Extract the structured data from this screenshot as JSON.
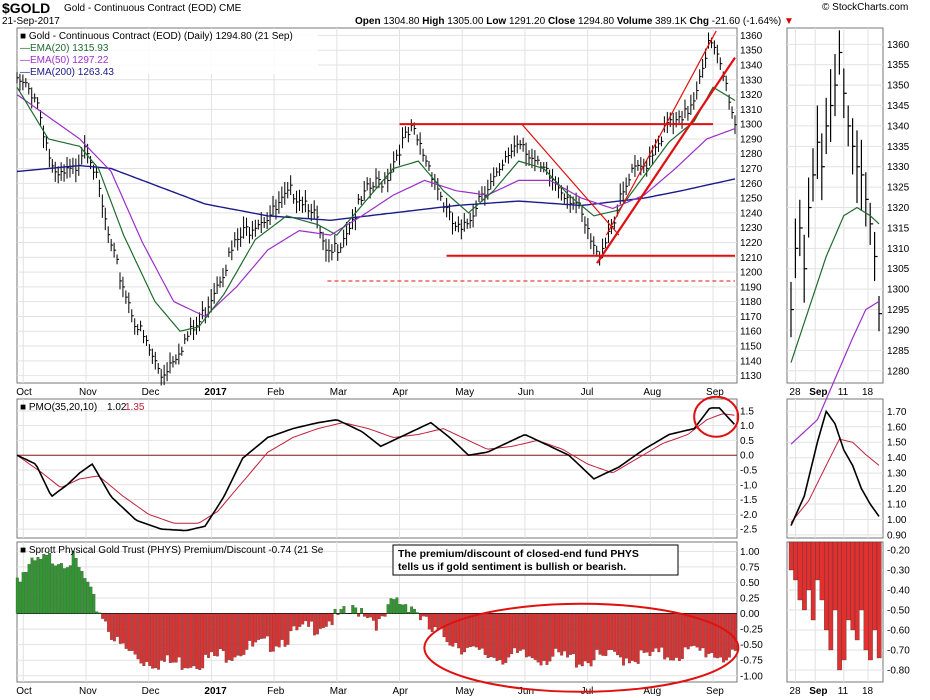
{
  "header": {
    "symbol": "$GOLD",
    "name": "Gold - Continuous Contract (EOD) CME",
    "date": "21-Sep-2017",
    "ohlc": [
      {
        "k": "Open",
        "v": "1304.80"
      },
      {
        "k": "High",
        "v": "1305.00"
      },
      {
        "k": "Low",
        "v": "1291.20"
      },
      {
        "k": "Close",
        "v": "1294.80"
      },
      {
        "k": "Volume",
        "v": "389.1K"
      },
      {
        "k": "Chg",
        "v": "-21.60 (-1.64%)"
      }
    ],
    "credit": "© StockCharts.com"
  },
  "colors": {
    "ema20": "#1f6b2e",
    "ema50": "#9b30c8",
    "ema200": "#1a1a8c",
    "annot": "#e01010",
    "pmo_signal": "#c0203a",
    "hist_pos": "#2e9a2e",
    "hist_neg": "#e03030",
    "grid": "#e2e2e2"
  },
  "chart_data": [
    {
      "panel": "price",
      "type": "line",
      "title": "Gold - Continuous Contract (EOD) (Daily) 1294.80 (21 Sep)",
      "legend": [
        {
          "name": "EMA(20)",
          "value": "1315.93"
        },
        {
          "name": "EMA(50)",
          "value": "1297.22"
        },
        {
          "name": "EMA(200)",
          "value": "1263.43"
        }
      ],
      "y_ticks": [
        "1360",
        "1350",
        "1340",
        "1330",
        "1320",
        "1310",
        "1300",
        "1290",
        "1280",
        "1270",
        "1260",
        "1250",
        "1240",
        "1230",
        "1220",
        "1210",
        "1200",
        "1190",
        "1180",
        "1170",
        "1160",
        "1150",
        "1140",
        "1130"
      ],
      "ylim": [
        1125,
        1365
      ],
      "x_labels": [
        "Oct",
        "Nov",
        "Dec",
        "2017",
        "Feb",
        "Mar",
        "Apr",
        "May",
        "Jun",
        "Jul",
        "Aug",
        "Sep"
      ],
      "x_label_months": [
        0,
        1,
        2,
        3,
        4,
        5,
        6,
        7,
        8,
        9,
        10,
        11
      ],
      "price_key_points": [
        [
          0,
          1328
        ],
        [
          0.3,
          1320
        ],
        [
          0.6,
          1262
        ],
        [
          0.9,
          1268
        ],
        [
          1.1,
          1290
        ],
        [
          1.2,
          1275
        ],
        [
          1.5,
          1215
        ],
        [
          1.9,
          1165
        ],
        [
          2.3,
          1130
        ],
        [
          2.6,
          1150
        ],
        [
          2.9,
          1165
        ],
        [
          3.2,
          1195
        ],
        [
          3.5,
          1220
        ],
        [
          3.8,
          1235
        ],
        [
          4.1,
          1240
        ],
        [
          4.4,
          1255
        ],
        [
          4.7,
          1245
        ],
        [
          4.95,
          1207
        ],
        [
          5.2,
          1225
        ],
        [
          5.6,
          1255
        ],
        [
          5.9,
          1265
        ],
        [
          6.1,
          1285
        ],
        [
          6.3,
          1295
        ],
        [
          6.6,
          1270
        ],
        [
          6.9,
          1235
        ],
        [
          7.1,
          1225
        ],
        [
          7.4,
          1255
        ],
        [
          7.7,
          1265
        ],
        [
          7.9,
          1285
        ],
        [
          8.05,
          1290
        ],
        [
          8.3,
          1270
        ],
        [
          8.6,
          1260
        ],
        [
          8.9,
          1248
        ],
        [
          9.1,
          1225
        ],
        [
          9.25,
          1210
        ],
        [
          9.4,
          1225
        ],
        [
          9.6,
          1245
        ],
        [
          9.8,
          1265
        ],
        [
          10.0,
          1272
        ],
        [
          10.2,
          1288
        ],
        [
          10.4,
          1300
        ],
        [
          10.6,
          1300
        ],
        [
          10.8,
          1320
        ],
        [
          10.95,
          1345
        ],
        [
          11.05,
          1355
        ],
        [
          11.2,
          1340
        ],
        [
          11.35,
          1320
        ],
        [
          11.45,
          1300
        ]
      ],
      "ema20_key_points": [
        [
          0,
          1325
        ],
        [
          0.5,
          1290
        ],
        [
          1,
          1285
        ],
        [
          1.3,
          1270
        ],
        [
          1.7,
          1225
        ],
        [
          2.2,
          1180
        ],
        [
          2.6,
          1160
        ],
        [
          2.9,
          1163
        ],
        [
          3.3,
          1185
        ],
        [
          3.8,
          1222
        ],
        [
          4.3,
          1238
        ],
        [
          4.8,
          1232
        ],
        [
          5.1,
          1225
        ],
        [
          5.6,
          1250
        ],
        [
          6.0,
          1270
        ],
        [
          6.4,
          1275
        ],
        [
          6.8,
          1255
        ],
        [
          7.2,
          1240
        ],
        [
          7.6,
          1255
        ],
        [
          8.0,
          1275
        ],
        [
          8.4,
          1270
        ],
        [
          8.8,
          1252
        ],
        [
          9.2,
          1238
        ],
        [
          9.6,
          1242
        ],
        [
          10.0,
          1265
        ],
        [
          10.4,
          1288
        ],
        [
          10.8,
          1302
        ],
        [
          11.1,
          1325
        ],
        [
          11.45,
          1316
        ]
      ],
      "ema50_key_points": [
        [
          0,
          1320
        ],
        [
          0.5,
          1305
        ],
        [
          1,
          1290
        ],
        [
          1.5,
          1268
        ],
        [
          2,
          1220
        ],
        [
          2.5,
          1180
        ],
        [
          3,
          1170
        ],
        [
          3.5,
          1190
        ],
        [
          4,
          1215
        ],
        [
          4.5,
          1228
        ],
        [
          5,
          1225
        ],
        [
          5.5,
          1238
        ],
        [
          6,
          1252
        ],
        [
          6.5,
          1262
        ],
        [
          7,
          1255
        ],
        [
          7.5,
          1252
        ],
        [
          8,
          1262
        ],
        [
          8.5,
          1262
        ],
        [
          9,
          1250
        ],
        [
          9.5,
          1243
        ],
        [
          10,
          1252
        ],
        [
          10.5,
          1270
        ],
        [
          11,
          1290
        ],
        [
          11.45,
          1297
        ]
      ],
      "ema200_key_points": [
        [
          0,
          1268
        ],
        [
          1,
          1272
        ],
        [
          1.5,
          1270
        ],
        [
          2,
          1262
        ],
        [
          3,
          1246
        ],
        [
          4,
          1238
        ],
        [
          5,
          1235
        ],
        [
          6,
          1240
        ],
        [
          7,
          1245
        ],
        [
          8,
          1248
        ],
        [
          9,
          1245
        ],
        [
          10,
          1250
        ],
        [
          10.6,
          1255
        ],
        [
          11.45,
          1263
        ]
      ]
    },
    {
      "panel": "pmo",
      "type": "line",
      "title": "PMO(35,20,10)",
      "values_text": [
        "1.02",
        "1.35"
      ],
      "y_ticks": [
        "1.5",
        "1.0",
        "0.5",
        "0.0",
        "-0.5",
        "-1.0",
        "-1.5",
        "-2.0",
        "-2.5"
      ],
      "ylim": [
        -2.8,
        1.9
      ],
      "pmo_key_points": [
        [
          0,
          0
        ],
        [
          0.3,
          -0.3
        ],
        [
          0.55,
          -1.4
        ],
        [
          0.8,
          -1.0
        ],
        [
          1.0,
          -0.6
        ],
        [
          1.2,
          -0.3
        ],
        [
          1.5,
          -1.4
        ],
        [
          1.9,
          -2.2
        ],
        [
          2.3,
          -2.5
        ],
        [
          2.7,
          -2.55
        ],
        [
          3.0,
          -2.4
        ],
        [
          3.3,
          -1.4
        ],
        [
          3.6,
          -0.1
        ],
        [
          4.0,
          0.6
        ],
        [
          4.4,
          0.9
        ],
        [
          4.8,
          1.1
        ],
        [
          5.1,
          1.2
        ],
        [
          5.5,
          0.8
        ],
        [
          5.8,
          0.3
        ],
        [
          6.2,
          0.7
        ],
        [
          6.6,
          1.1
        ],
        [
          6.9,
          0.6
        ],
        [
          7.2,
          0.0
        ],
        [
          7.5,
          0.1
        ],
        [
          7.8,
          0.4
        ],
        [
          8.1,
          0.7
        ],
        [
          8.4,
          0.4
        ],
        [
          8.8,
          0.0
        ],
        [
          9.2,
          -0.8
        ],
        [
          9.6,
          -0.4
        ],
        [
          10.0,
          0.2
        ],
        [
          10.4,
          0.7
        ],
        [
          10.8,
          0.9
        ],
        [
          11.05,
          1.6
        ],
        [
          11.2,
          1.6
        ],
        [
          11.45,
          1.02
        ]
      ],
      "signal_key_points": [
        [
          0,
          0.0
        ],
        [
          0.4,
          -0.6
        ],
        [
          0.7,
          -1.1
        ],
        [
          1.0,
          -0.8
        ],
        [
          1.3,
          -0.7
        ],
        [
          1.7,
          -1.4
        ],
        [
          2.1,
          -2.0
        ],
        [
          2.5,
          -2.3
        ],
        [
          2.9,
          -2.3
        ],
        [
          3.2,
          -1.9
        ],
        [
          3.6,
          -0.9
        ],
        [
          4.0,
          0.1
        ],
        [
          4.4,
          0.6
        ],
        [
          4.8,
          0.9
        ],
        [
          5.2,
          1.1
        ],
        [
          5.6,
          0.9
        ],
        [
          6.0,
          0.6
        ],
        [
          6.4,
          0.7
        ],
        [
          6.8,
          0.9
        ],
        [
          7.1,
          0.6
        ],
        [
          7.5,
          0.2
        ],
        [
          7.9,
          0.3
        ],
        [
          8.3,
          0.5
        ],
        [
          8.7,
          0.2
        ],
        [
          9.1,
          -0.3
        ],
        [
          9.5,
          -0.6
        ],
        [
          9.9,
          -0.1
        ],
        [
          10.3,
          0.4
        ],
        [
          10.7,
          0.7
        ],
        [
          11.0,
          1.2
        ],
        [
          11.25,
          1.4
        ],
        [
          11.45,
          1.35
        ]
      ]
    },
    {
      "panel": "premium",
      "type": "bar",
      "title": "Sprott Physical Gold Trust (PHYS) Premium/Discount -0.74 (21 Se",
      "annotation": "The premium/discount of closed-end fund PHYS tells us if gold sentiment is bullish or bearish.",
      "y_ticks": [
        "1.00",
        "0.75",
        "0.50",
        "0.25",
        "0.00",
        "-0.25",
        "-0.50",
        "-0.75",
        "-1.00"
      ],
      "ylim": [
        -1.1,
        1.15
      ],
      "hist_key_points": [
        [
          0,
          0.6
        ],
        [
          0.3,
          0.8
        ],
        [
          0.6,
          0.9
        ],
        [
          0.9,
          0.85
        ],
        [
          1.1,
          0.5
        ],
        [
          1.2,
          0.2
        ],
        [
          1.35,
          0.0
        ],
        [
          1.6,
          -0.5
        ],
        [
          2.0,
          -0.75
        ],
        [
          2.5,
          -0.8
        ],
        [
          3.0,
          -0.75
        ],
        [
          3.5,
          -0.6
        ],
        [
          4.0,
          -0.5
        ],
        [
          4.5,
          -0.3
        ],
        [
          5.0,
          -0.1
        ],
        [
          5.3,
          0.0
        ],
        [
          5.5,
          0.1
        ],
        [
          5.8,
          -0.2
        ],
        [
          6.0,
          0.2
        ],
        [
          6.3,
          0.15
        ],
        [
          6.6,
          -0.3
        ],
        [
          6.9,
          -0.4
        ],
        [
          7.3,
          -0.65
        ],
        [
          7.8,
          -0.7
        ],
        [
          8.5,
          -0.7
        ],
        [
          9.0,
          -0.75
        ],
        [
          9.5,
          -0.7
        ],
        [
          10.0,
          -0.7
        ],
        [
          10.5,
          -0.65
        ],
        [
          11.0,
          -0.6
        ],
        [
          11.45,
          -0.74
        ]
      ]
    },
    {
      "panel": "zoom",
      "type": "line",
      "x_labels": [
        "28",
        "Sep",
        "11",
        "18"
      ],
      "price_ticks": [
        "1360",
        "1355",
        "1350",
        "1345",
        "1340",
        "1335",
        "1330",
        "1325",
        "1320",
        "1315",
        "1310",
        "1305",
        "1300",
        "1295",
        "1290",
        "1285",
        "1280"
      ],
      "price_ylim": [
        1277,
        1364
      ],
      "pmo_ticks": [
        "1.70",
        "1.60",
        "1.50",
        "1.40",
        "1.30",
        "1.20",
        "1.10",
        "1.00",
        "0.90"
      ],
      "pmo_ylim": [
        0.88,
        1.78
      ],
      "prem_ticks": [
        "-0.20",
        "-0.30",
        "-0.40",
        "-0.50",
        "-0.60",
        "-0.70",
        "-0.80"
      ],
      "prem_ylim": [
        -0.86,
        -0.16
      ],
      "zoom_price": [
        [
          0,
          1295
        ],
        [
          1,
          1310
        ],
        [
          2,
          1315
        ],
        [
          3,
          1305
        ],
        [
          4,
          1320
        ],
        [
          5,
          1328
        ],
        [
          6,
          1336
        ],
        [
          7,
          1330
        ],
        [
          8,
          1340
        ],
        [
          9,
          1345
        ],
        [
          10,
          1350
        ],
        [
          11,
          1358
        ],
        [
          12,
          1348
        ],
        [
          13,
          1340
        ],
        [
          14,
          1335
        ],
        [
          15,
          1330
        ],
        [
          16,
          1328
        ],
        [
          17,
          1322
        ],
        [
          18,
          1316
        ],
        [
          19,
          1308
        ],
        [
          20,
          1294
        ]
      ],
      "zoom_ema20": [
        [
          0,
          1282
        ],
        [
          4,
          1295
        ],
        [
          8,
          1308
        ],
        [
          12,
          1318
        ],
        [
          15,
          1320
        ],
        [
          18,
          1318
        ],
        [
          20,
          1316
        ]
      ],
      "zoom_ema50": [
        [
          0,
          1262
        ],
        [
          6,
          1268
        ],
        [
          10,
          1278
        ],
        [
          14,
          1288
        ],
        [
          17,
          1295
        ],
        [
          20,
          1297
        ]
      ],
      "zoom_pmo": [
        [
          0,
          0.96
        ],
        [
          3,
          1.15
        ],
        [
          6,
          1.5
        ],
        [
          8,
          1.7
        ],
        [
          10,
          1.62
        ],
        [
          12,
          1.45
        ],
        [
          14,
          1.35
        ],
        [
          16,
          1.2
        ],
        [
          18,
          1.1
        ],
        [
          20,
          1.02
        ]
      ],
      "zoom_signal": [
        [
          0,
          0.98
        ],
        [
          4,
          1.12
        ],
        [
          8,
          1.35
        ],
        [
          11,
          1.52
        ],
        [
          14,
          1.5
        ],
        [
          17,
          1.42
        ],
        [
          20,
          1.35
        ]
      ],
      "zoom_prem": [
        -0.3,
        -0.35,
        -0.45,
        -0.5,
        -0.4,
        -0.55,
        -0.35,
        -0.45,
        -0.6,
        -0.7,
        -0.5,
        -0.8,
        -0.75,
        -0.55,
        -0.6,
        -0.65,
        -0.5,
        -0.7,
        -0.75,
        -0.6,
        -0.74
      ]
    }
  ]
}
